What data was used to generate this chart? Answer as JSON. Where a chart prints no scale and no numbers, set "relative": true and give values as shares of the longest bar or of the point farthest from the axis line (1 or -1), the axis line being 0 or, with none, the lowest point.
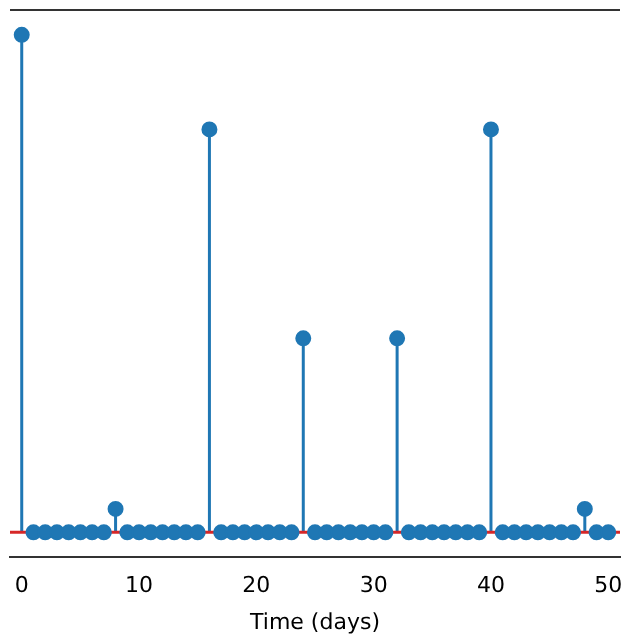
{
  "chart_data": {
    "type": "lollipop",
    "xlabel": "Time (days)",
    "relative": true,
    "marker": "circle",
    "x": [
      0,
      1,
      2,
      3,
      4,
      5,
      6,
      7,
      8,
      9,
      10,
      11,
      12,
      13,
      14,
      15,
      16,
      17,
      18,
      19,
      20,
      21,
      22,
      23,
      24,
      25,
      26,
      27,
      28,
      29,
      30,
      31,
      32,
      33,
      34,
      35,
      36,
      37,
      38,
      39,
      40,
      41,
      42,
      43,
      44,
      45,
      46,
      47,
      48,
      49,
      50
    ],
    "series": [
      {
        "color": "#1f77b4",
        "values": [
          1,
          0,
          0,
          0,
          0,
          0,
          0,
          0,
          0.047,
          0,
          0,
          0,
          0,
          0,
          0,
          0,
          0.81,
          0,
          0,
          0,
          0,
          0,
          0,
          0,
          0.39,
          0,
          0,
          0,
          0,
          0,
          0,
          0,
          0.39,
          0,
          0,
          0,
          0,
          0,
          0,
          0,
          0.81,
          0,
          0,
          0,
          0,
          0,
          0,
          0,
          0.047,
          0,
          0
        ]
      }
    ],
    "xlim": [
      -1,
      51
    ],
    "xticks": [
      0,
      10,
      20,
      30,
      40,
      50
    ],
    "ref_lines": [
      {
        "axis": "y",
        "value": 0,
        "color": "#d62728"
      }
    ]
  }
}
